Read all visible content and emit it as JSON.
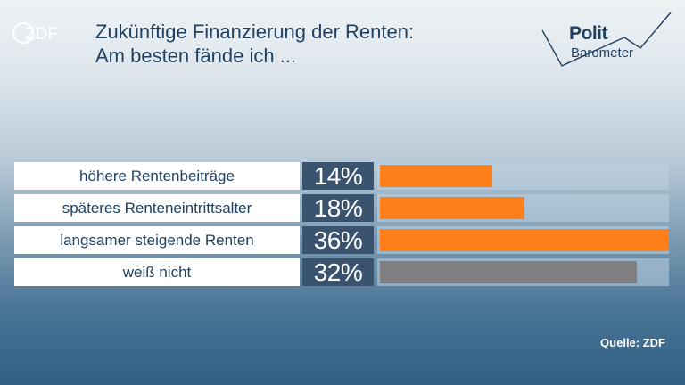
{
  "brand": {
    "logo_text": "ZDF"
  },
  "title": {
    "line1": "Zukünftige Finanzierung der Renten:",
    "line2": "Am besten fände ich ..."
  },
  "politbarometer": {
    "line1": "Polit",
    "line2": "Barometer"
  },
  "chart_data": {
    "type": "bar",
    "orientation": "horizontal",
    "categories": [
      "höhere Rentenbeiträge",
      "späteres Renteneintrittsalter",
      "langsamer steigende Renten",
      "weiß nicht"
    ],
    "values": [
      14,
      18,
      36,
      32
    ],
    "labels": [
      "14%",
      "18%",
      "36%",
      "32%"
    ],
    "colors": [
      "#ff7f1a",
      "#ff7f1a",
      "#ff7f1a",
      "#7f7f82"
    ],
    "xlim": [
      0,
      36
    ]
  },
  "source": "Quelle: ZDF"
}
